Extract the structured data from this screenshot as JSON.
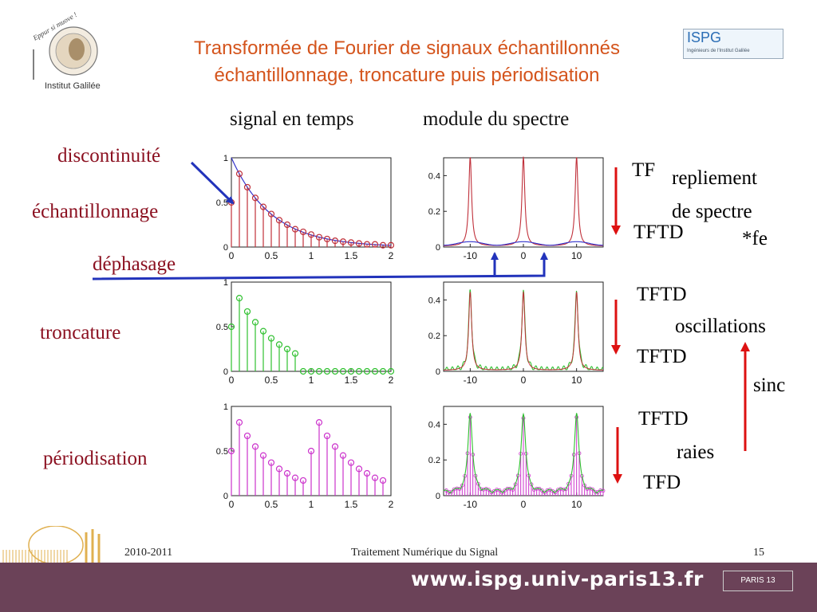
{
  "header": {
    "title_line1": "Transformée de Fourier de signaux échantillonnés",
    "title_line2": "échantillonnage, troncature puis périodisation"
  },
  "logos": {
    "left_motto": "Eppur si muove !",
    "left_name": "Institut Galilée",
    "right_name": "ISPG",
    "right_sub": "Ingénieurs de l'Institut Galilée"
  },
  "columns": {
    "time": "signal en temps",
    "spectrum": "module du spectre"
  },
  "left_labels": {
    "discontinuite": "discontinuité",
    "echantillonnage": "échantillonnage",
    "dephasage": "déphasage",
    "troncature": "troncature",
    "periodisation": "périodisation"
  },
  "right_labels": {
    "tf": "TF",
    "repliement1": "repliement",
    "repliement2": "de spectre",
    "tftd_a": "TFTD",
    "fe": "*fe",
    "tftd_b": "TFTD",
    "oscillations": "oscillations",
    "tftd_c": "TFTD",
    "sinc": "sinc",
    "tftd_d": "TFTD",
    "raies": "raies",
    "tfd": "TFD"
  },
  "footer": {
    "year": "2010-2011",
    "course": "Traitement Numérique du Signal",
    "page": "15",
    "url": "www.ispg.univ-paris13.fr",
    "univ": "PARIS 13"
  },
  "colors": {
    "title": "#d4541c",
    "label": "#8b1020",
    "arrow_blue": "#2233bb",
    "arrow_red": "#dd1111",
    "footer_bar": "#6b4258",
    "series_red": "#c0303a",
    "series_green": "#2fc02f",
    "series_magenta": "#cc33cc",
    "series_blue": "#3333cc"
  },
  "chart_data": [
    {
      "type": "stem",
      "name": "time-sampled",
      "xlim": [
        0,
        2
      ],
      "ylim": [
        0,
        1
      ],
      "xticks": [
        "0",
        "0.5",
        "1",
        "1.5",
        "2"
      ],
      "yticks": [
        "0",
        "0.5",
        "1"
      ],
      "x": [
        0,
        0.1,
        0.2,
        0.3,
        0.4,
        0.5,
        0.6,
        0.7,
        0.8,
        0.9,
        1.0,
        1.1,
        1.2,
        1.3,
        1.4,
        1.5,
        1.6,
        1.7,
        1.8,
        1.9,
        2.0
      ],
      "values": [
        0.5,
        0.82,
        0.67,
        0.55,
        0.45,
        0.37,
        0.3,
        0.25,
        0.2,
        0.17,
        0.14,
        0.11,
        0.09,
        0.07,
        0.06,
        0.05,
        0.04,
        0.03,
        0.03,
        0.02,
        0.02
      ],
      "continuous_decay": 2.0
    },
    {
      "type": "stem",
      "name": "time-truncated",
      "xlim": [
        0,
        2
      ],
      "ylim": [
        0,
        1
      ],
      "xticks": [
        "0",
        "0.5",
        "1",
        "1.5",
        "2"
      ],
      "yticks": [
        "0",
        "0.5",
        "1"
      ],
      "x": [
        0,
        0.1,
        0.2,
        0.3,
        0.4,
        0.5,
        0.6,
        0.7,
        0.8,
        0.9,
        1.0,
        1.1,
        1.2,
        1.3,
        1.4,
        1.5,
        1.6,
        1.7,
        1.8,
        1.9,
        2.0
      ],
      "values": [
        0.5,
        0.82,
        0.67,
        0.55,
        0.45,
        0.37,
        0.3,
        0.25,
        0.2,
        0,
        0,
        0,
        0,
        0,
        0,
        0,
        0,
        0,
        0,
        0,
        0
      ]
    },
    {
      "type": "stem",
      "name": "time-periodised",
      "xlim": [
        0,
        2
      ],
      "ylim": [
        0,
        1
      ],
      "xticks": [
        "0",
        "0.5",
        "1",
        "1.5",
        "2"
      ],
      "yticks": [
        "0",
        "0.5",
        "1"
      ],
      "x": [
        0,
        0.1,
        0.2,
        0.3,
        0.4,
        0.5,
        0.6,
        0.7,
        0.8,
        0.9,
        1.0,
        1.1,
        1.2,
        1.3,
        1.4,
        1.5,
        1.6,
        1.7,
        1.8,
        1.9
      ],
      "values": [
        0.5,
        0.82,
        0.67,
        0.55,
        0.45,
        0.37,
        0.3,
        0.25,
        0.2,
        0.17,
        0.5,
        0.82,
        0.67,
        0.55,
        0.45,
        0.37,
        0.3,
        0.25,
        0.2,
        0.17
      ]
    },
    {
      "type": "line",
      "name": "spectrum-sampled",
      "xlim": [
        -15,
        15
      ],
      "ylim": [
        0,
        0.5
      ],
      "xticks": [
        "-10",
        "0",
        "10"
      ],
      "yticks": [
        "0",
        "0.2",
        "0.4"
      ],
      "peaks": [
        -10,
        0,
        10
      ],
      "peak_value": 0.5,
      "gamma": 0.32
    },
    {
      "type": "line",
      "name": "spectrum-truncated",
      "xlim": [
        -15,
        15
      ],
      "ylim": [
        0,
        0.5
      ],
      "xticks": [
        "-10",
        "0",
        "10"
      ],
      "yticks": [
        "0",
        "0.2",
        "0.4"
      ],
      "peaks": [
        -10,
        0,
        10
      ],
      "peak_value": 0.45,
      "gamma": 0.35
    },
    {
      "type": "stem",
      "name": "spectrum-periodised",
      "xlim": [
        -15,
        15
      ],
      "ylim": [
        0,
        0.5
      ],
      "xticks": [
        "-10",
        "0",
        "10"
      ],
      "yticks": [
        "0",
        "0.2",
        "0.4"
      ],
      "peaks": [
        -10,
        0,
        10
      ],
      "peak_value": 0.45,
      "gamma": 0.5
    }
  ]
}
